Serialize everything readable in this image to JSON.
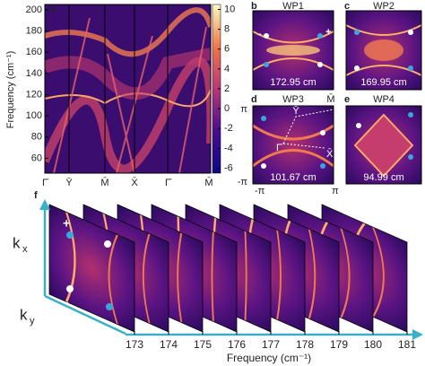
{
  "panel_a": {
    "label": "a",
    "y_label": "Frequency (cm⁻¹)",
    "ylim": [
      46,
      205
    ],
    "yticks": [
      60,
      80,
      100,
      120,
      140,
      160,
      180,
      200
    ],
    "x_labels": [
      "Γ̄",
      "Ȳ",
      "M̄",
      "X̄",
      "Γ̄",
      "M̄"
    ],
    "colorbar_lim": [
      -6.5,
      10.5
    ],
    "colorbar_ticks": [
      -6,
      -4,
      -2,
      0,
      2,
      4,
      6,
      8,
      10
    ]
  },
  "panel_b": {
    "label": "b",
    "title": "WP1",
    "frequency": "172.95 cm",
    "markers": [
      "-",
      "+"
    ]
  },
  "panel_c": {
    "label": "c",
    "title": "WP2",
    "frequency": "169.95 cm"
  },
  "panel_d": {
    "label": "d",
    "title": "WP3",
    "frequency": "101.67 cm",
    "axis_labels": [
      "π",
      "-π",
      "-π",
      "π"
    ],
    "points": [
      "Ȳ",
      "M̄",
      "Γ̄",
      "X̄"
    ]
  },
  "panel_e": {
    "label": "e",
    "title": "WP4",
    "frequency": "94.99 cm"
  },
  "panel_f": {
    "label": "f",
    "kx": "k",
    "kx_sub": "x",
    "ky": "k",
    "ky_sub": "y",
    "markers": [
      "+",
      "-"
    ],
    "frequency_ticks": [
      173,
      174,
      175,
      176,
      177,
      178,
      179,
      180,
      181
    ],
    "x_label": "Frequency (cm⁻¹)"
  }
}
